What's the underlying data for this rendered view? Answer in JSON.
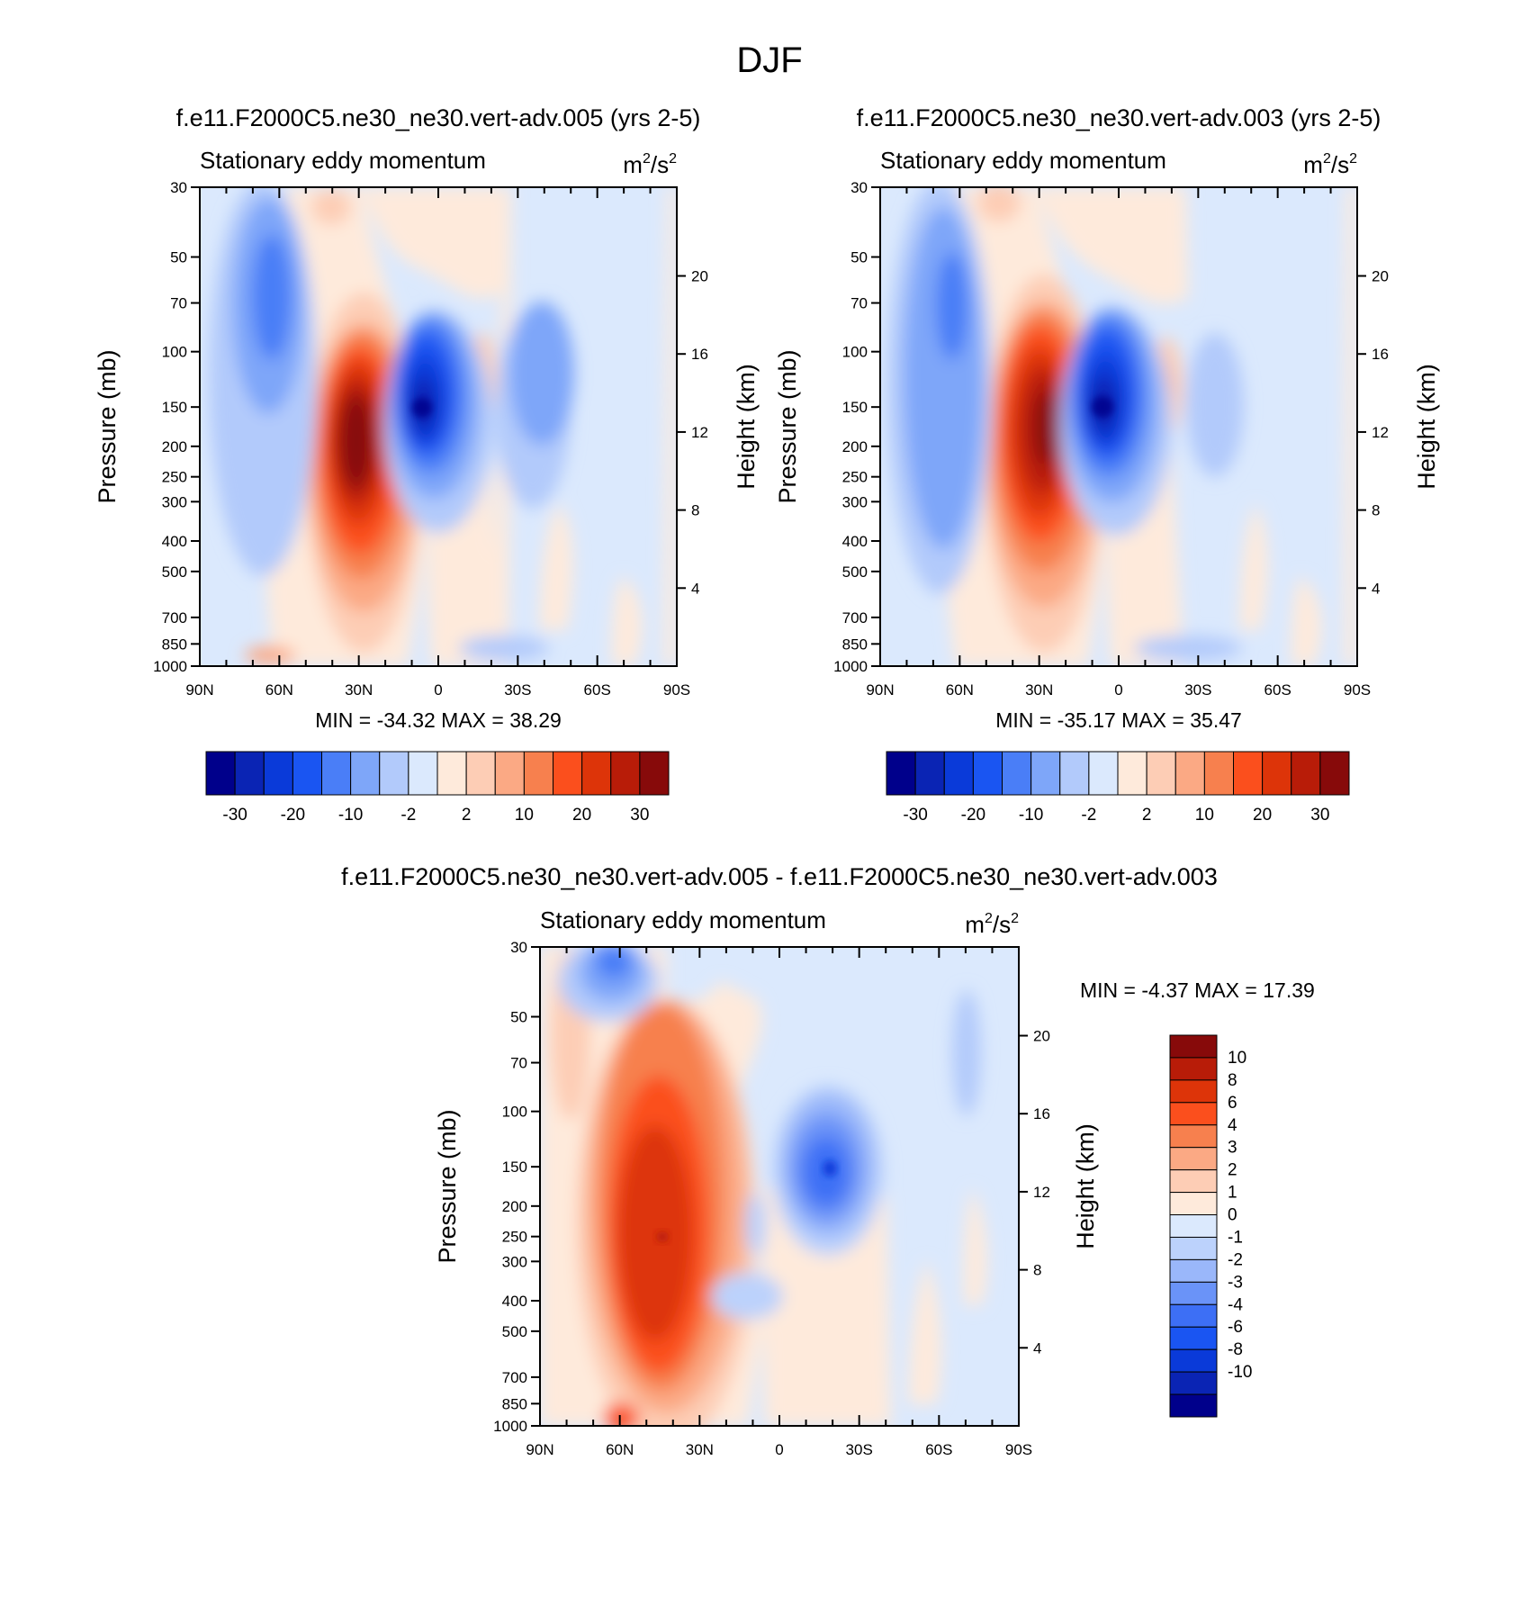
{
  "figure": {
    "title": "DJF"
  },
  "chart_data": [
    {
      "type": "heatmap",
      "id": "panel-005",
      "title": "f.e11.F2000C5.ne30_ne30.vert-adv.005 (yrs 2-5)",
      "subtitle_left": "Stationary eddy momentum",
      "units": {
        "base": "m",
        "exp1": "2",
        "sep": "/s",
        "exp2": "2"
      },
      "ylabel": "Pressure (mb)",
      "ylabel_right": "Height (km)",
      "pressure_ticks": [
        "30",
        "50",
        "70",
        "100",
        "150",
        "200",
        "250",
        "300",
        "400",
        "500",
        "700",
        "850",
        "1000"
      ],
      "height_ticks": [
        "20",
        "16",
        "12",
        "8",
        "4"
      ],
      "x_ticks": [
        "90N",
        "60N",
        "30N",
        "0",
        "30S",
        "60S",
        "90S"
      ],
      "min_max_text": "MIN = -34.32  MAX =  38.29",
      "min": -34.32,
      "max": 38.29,
      "colorbar_labels": [
        "-30",
        "-20",
        "-10",
        "-2",
        "2",
        "10",
        "20",
        "30"
      ],
      "features": [
        {
          "lat": 30,
          "p": 220,
          "value": 38.29,
          "desc": "positive maximum"
        },
        {
          "lat": 5,
          "p": 150,
          "value": -34.32,
          "desc": "negative minimum"
        },
        {
          "lat": 65,
          "p": 80,
          "value": -8,
          "desc": "negative lobe"
        },
        {
          "lat": -36,
          "p": 130,
          "value": -5,
          "desc": "negative lobe"
        },
        {
          "lat": -12,
          "p": 120,
          "value": 4,
          "desc": "positive lobe"
        }
      ]
    },
    {
      "type": "heatmap",
      "id": "panel-003",
      "title": "f.e11.F2000C5.ne30_ne30.vert-adv.003 (yrs 2-5)",
      "subtitle_left": "Stationary eddy momentum",
      "units": {
        "base": "m",
        "exp1": "2",
        "sep": "/s",
        "exp2": "2"
      },
      "ylabel": "Pressure (mb)",
      "ylabel_right": "Height (km)",
      "pressure_ticks": [
        "30",
        "50",
        "70",
        "100",
        "150",
        "200",
        "250",
        "300",
        "400",
        "500",
        "700",
        "850",
        "1000"
      ],
      "height_ticks": [
        "20",
        "16",
        "12",
        "8",
        "4"
      ],
      "x_ticks": [
        "90N",
        "60N",
        "30N",
        "0",
        "30S",
        "60S",
        "90S"
      ],
      "min_max_text": "MIN = -35.17  MAX =  35.47",
      "min": -35.17,
      "max": 35.47,
      "colorbar_labels": [
        "-30",
        "-20",
        "-10",
        "-2",
        "2",
        "10",
        "20",
        "30"
      ],
      "features": [
        {
          "lat": 27,
          "p": 190,
          "value": 35.47,
          "desc": "positive maximum"
        },
        {
          "lat": 5,
          "p": 150,
          "value": -35.17,
          "desc": "negative minimum"
        },
        {
          "lat": 65,
          "p": 150,
          "value": -12,
          "desc": "negative lobe"
        },
        {
          "lat": -36,
          "p": 140,
          "value": -4,
          "desc": "negative lobe"
        },
        {
          "lat": -15,
          "p": 130,
          "value": 5,
          "desc": "positive lobe"
        }
      ]
    },
    {
      "type": "heatmap",
      "id": "panel-diff",
      "title": "f.e11.F2000C5.ne30_ne30.vert-adv.005 - f.e11.F2000C5.ne30_ne30.vert-adv.003",
      "subtitle_left": "Stationary eddy momentum",
      "units": {
        "base": "m",
        "exp1": "2",
        "sep": "/s",
        "exp2": "2"
      },
      "ylabel": "Pressure (mb)",
      "ylabel_right": "Height (km)",
      "pressure_ticks": [
        "30",
        "50",
        "70",
        "100",
        "150",
        "200",
        "250",
        "300",
        "400",
        "500",
        "700",
        "850",
        "1000"
      ],
      "height_ticks": [
        "20",
        "16",
        "12",
        "8",
        "4"
      ],
      "x_ticks": [
        "90N",
        "60N",
        "30N",
        "0",
        "30S",
        "60S",
        "90S"
      ],
      "min_max_text": "MIN =  -4.37  MAX =  17.39",
      "min": -4.37,
      "max": 17.39,
      "colorbar_labels": [
        "10",
        "8",
        "6",
        "4",
        "3",
        "2",
        "1",
        "0",
        "-1",
        "-2",
        "-3",
        "-4",
        "-6",
        "-8",
        "-10"
      ],
      "features": [
        {
          "lat": 45,
          "p": 250,
          "value": 17.39,
          "desc": "positive maximum"
        },
        {
          "lat": -18,
          "p": 160,
          "value": -4.37,
          "desc": "negative minimum"
        },
        {
          "lat": 68,
          "p": 35,
          "value": -3,
          "desc": "negative lobe"
        },
        {
          "lat": -70,
          "p": 75,
          "value": -1.5,
          "desc": "negative lobe"
        }
      ]
    }
  ],
  "colors": {
    "panel_levels": [
      "#00008b",
      "#0a24b4",
      "#0a3ad9",
      "#1a55f2",
      "#4a7ef7",
      "#7ea6f9",
      "#b2cafb",
      "#dbe9fd",
      "#feeadb",
      "#fdcdb5",
      "#fba984",
      "#f7804e",
      "#fb4f1d",
      "#dd3409",
      "#b81c08",
      "#870a0a"
    ],
    "diff_levels": [
      "#00008b",
      "#0a24b4",
      "#0a3ad9",
      "#1a55f2",
      "#3d6ff5",
      "#6a93f8",
      "#9ab7fa",
      "#bcd2fc",
      "#dbe9fd",
      "#feeadb",
      "#fdcdb5",
      "#fba984",
      "#f7804e",
      "#fb4f1d",
      "#dd3409",
      "#b81c08",
      "#870a0a"
    ]
  }
}
